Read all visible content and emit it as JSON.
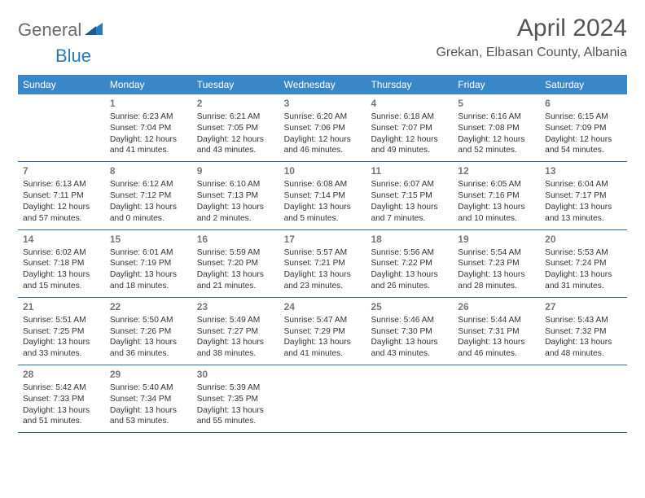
{
  "logo": {
    "text1": "General",
    "text2": "Blue"
  },
  "title": "April 2024",
  "location": "Grekan, Elbasan County, Albania",
  "colors": {
    "header_bg": "#3a87c7",
    "header_text": "#ffffff",
    "row_border": "#2a6ca8",
    "daynum": "#777777",
    "body_text": "#333333",
    "logo_gray": "#6b6b6b",
    "logo_blue": "#2a7ab9",
    "title_color": "#555555"
  },
  "dayHeaders": [
    "Sunday",
    "Monday",
    "Tuesday",
    "Wednesday",
    "Thursday",
    "Friday",
    "Saturday"
  ],
  "weeks": [
    [
      null,
      {
        "d": "1",
        "sr": "6:23 AM",
        "ss": "7:04 PM",
        "dl": "12 hours and 41 minutes."
      },
      {
        "d": "2",
        "sr": "6:21 AM",
        "ss": "7:05 PM",
        "dl": "12 hours and 43 minutes."
      },
      {
        "d": "3",
        "sr": "6:20 AM",
        "ss": "7:06 PM",
        "dl": "12 hours and 46 minutes."
      },
      {
        "d": "4",
        "sr": "6:18 AM",
        "ss": "7:07 PM",
        "dl": "12 hours and 49 minutes."
      },
      {
        "d": "5",
        "sr": "6:16 AM",
        "ss": "7:08 PM",
        "dl": "12 hours and 52 minutes."
      },
      {
        "d": "6",
        "sr": "6:15 AM",
        "ss": "7:09 PM",
        "dl": "12 hours and 54 minutes."
      }
    ],
    [
      {
        "d": "7",
        "sr": "6:13 AM",
        "ss": "7:11 PM",
        "dl": "12 hours and 57 minutes."
      },
      {
        "d": "8",
        "sr": "6:12 AM",
        "ss": "7:12 PM",
        "dl": "13 hours and 0 minutes."
      },
      {
        "d": "9",
        "sr": "6:10 AM",
        "ss": "7:13 PM",
        "dl": "13 hours and 2 minutes."
      },
      {
        "d": "10",
        "sr": "6:08 AM",
        "ss": "7:14 PM",
        "dl": "13 hours and 5 minutes."
      },
      {
        "d": "11",
        "sr": "6:07 AM",
        "ss": "7:15 PM",
        "dl": "13 hours and 7 minutes."
      },
      {
        "d": "12",
        "sr": "6:05 AM",
        "ss": "7:16 PM",
        "dl": "13 hours and 10 minutes."
      },
      {
        "d": "13",
        "sr": "6:04 AM",
        "ss": "7:17 PM",
        "dl": "13 hours and 13 minutes."
      }
    ],
    [
      {
        "d": "14",
        "sr": "6:02 AM",
        "ss": "7:18 PM",
        "dl": "13 hours and 15 minutes."
      },
      {
        "d": "15",
        "sr": "6:01 AM",
        "ss": "7:19 PM",
        "dl": "13 hours and 18 minutes."
      },
      {
        "d": "16",
        "sr": "5:59 AM",
        "ss": "7:20 PM",
        "dl": "13 hours and 21 minutes."
      },
      {
        "d": "17",
        "sr": "5:57 AM",
        "ss": "7:21 PM",
        "dl": "13 hours and 23 minutes."
      },
      {
        "d": "18",
        "sr": "5:56 AM",
        "ss": "7:22 PM",
        "dl": "13 hours and 26 minutes."
      },
      {
        "d": "19",
        "sr": "5:54 AM",
        "ss": "7:23 PM",
        "dl": "13 hours and 28 minutes."
      },
      {
        "d": "20",
        "sr": "5:53 AM",
        "ss": "7:24 PM",
        "dl": "13 hours and 31 minutes."
      }
    ],
    [
      {
        "d": "21",
        "sr": "5:51 AM",
        "ss": "7:25 PM",
        "dl": "13 hours and 33 minutes."
      },
      {
        "d": "22",
        "sr": "5:50 AM",
        "ss": "7:26 PM",
        "dl": "13 hours and 36 minutes."
      },
      {
        "d": "23",
        "sr": "5:49 AM",
        "ss": "7:27 PM",
        "dl": "13 hours and 38 minutes."
      },
      {
        "d": "24",
        "sr": "5:47 AM",
        "ss": "7:29 PM",
        "dl": "13 hours and 41 minutes."
      },
      {
        "d": "25",
        "sr": "5:46 AM",
        "ss": "7:30 PM",
        "dl": "13 hours and 43 minutes."
      },
      {
        "d": "26",
        "sr": "5:44 AM",
        "ss": "7:31 PM",
        "dl": "13 hours and 46 minutes."
      },
      {
        "d": "27",
        "sr": "5:43 AM",
        "ss": "7:32 PM",
        "dl": "13 hours and 48 minutes."
      }
    ],
    [
      {
        "d": "28",
        "sr": "5:42 AM",
        "ss": "7:33 PM",
        "dl": "13 hours and 51 minutes."
      },
      {
        "d": "29",
        "sr": "5:40 AM",
        "ss": "7:34 PM",
        "dl": "13 hours and 53 minutes."
      },
      {
        "d": "30",
        "sr": "5:39 AM",
        "ss": "7:35 PM",
        "dl": "13 hours and 55 minutes."
      },
      null,
      null,
      null,
      null
    ]
  ],
  "labels": {
    "sunrise": "Sunrise:",
    "sunset": "Sunset:",
    "daylight": "Daylight:"
  }
}
